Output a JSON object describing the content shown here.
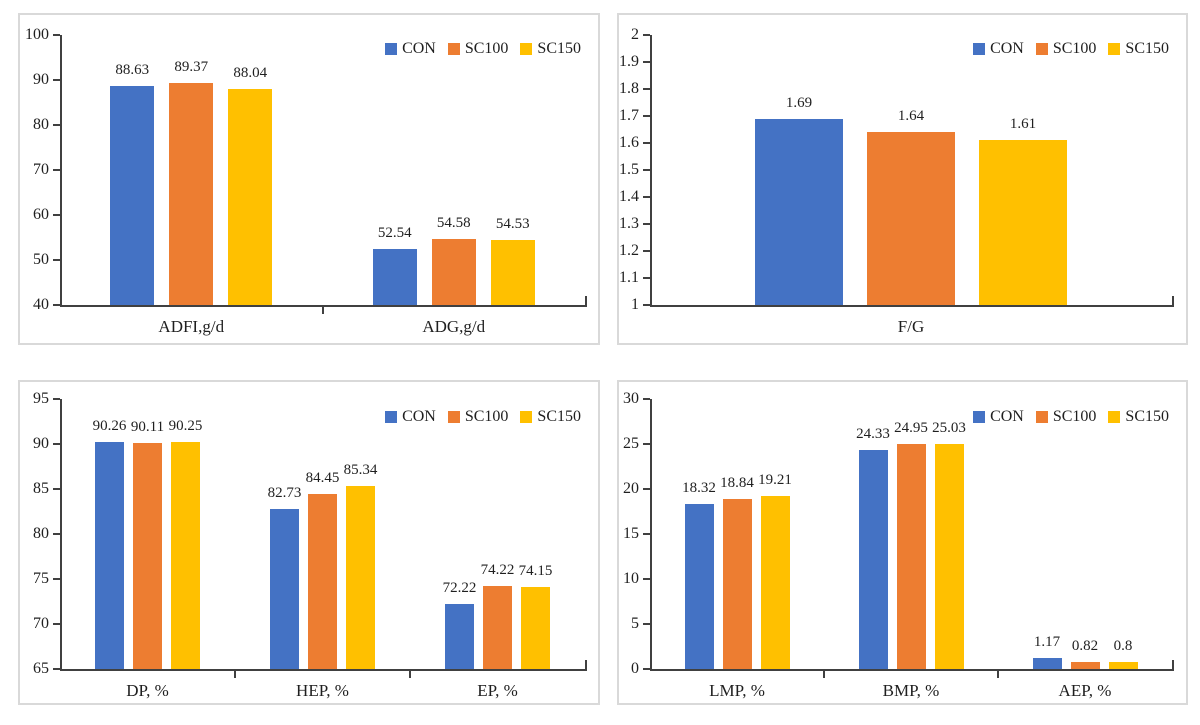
{
  "page": {
    "background": "#ffffff",
    "panel_border_color": "#d9d9d9",
    "axis_color": "#404040",
    "text_color": "#1f1f1f"
  },
  "legend": {
    "position": "top-right",
    "items": [
      {
        "label": "CON",
        "color": "#4472C4"
      },
      {
        "label": "SC100",
        "color": "#ED7D31"
      },
      {
        "label": "SC150",
        "color": "#FFC000"
      }
    ]
  },
  "chart_data": [
    {
      "type": "bar",
      "title": "",
      "categories": [
        "ADFI,g/d",
        "ADG,g/d"
      ],
      "series": [
        {
          "name": "CON",
          "color": "#4472C4",
          "values": [
            88.63,
            52.54
          ],
          "labels": [
            "88.63",
            "52.54"
          ]
        },
        {
          "name": "SC100",
          "color": "#ED7D31",
          "values": [
            89.37,
            54.58
          ],
          "labels": [
            "89.37",
            "54.58"
          ]
        },
        {
          "name": "SC150",
          "color": "#FFC000",
          "values": [
            88.04,
            54.53
          ],
          "labels": [
            "88.04",
            "54.53"
          ]
        }
      ],
      "xlabel": "",
      "ylabel": "",
      "ylim": [
        40,
        100
      ],
      "yticks": [
        "100",
        "90",
        "80",
        "70",
        "60",
        "50",
        "40"
      ],
      "grid": false,
      "legend_position": "top-right",
      "data_labels": true
    },
    {
      "type": "bar",
      "title": "",
      "categories": [
        "F/G"
      ],
      "series": [
        {
          "name": "CON",
          "color": "#4472C4",
          "values": [
            1.69
          ],
          "labels": [
            "1.69"
          ]
        },
        {
          "name": "SC100",
          "color": "#ED7D31",
          "values": [
            1.64
          ],
          "labels": [
            "1.64"
          ]
        },
        {
          "name": "SC150",
          "color": "#FFC000",
          "values": [
            1.61
          ],
          "labels": [
            "1.61"
          ]
        }
      ],
      "xlabel": "",
      "ylabel": "",
      "ylim": [
        1,
        2
      ],
      "yticks": [
        "2",
        "1.9",
        "1.8",
        "1.7",
        "1.6",
        "1.5",
        "1.4",
        "1.3",
        "1.2",
        "1.1",
        "1"
      ],
      "grid": false,
      "legend_position": "top-right",
      "data_labels": true
    },
    {
      "type": "bar",
      "title": "",
      "categories": [
        "DP, %",
        "HEP, %",
        "EP, %"
      ],
      "series": [
        {
          "name": "CON",
          "color": "#4472C4",
          "values": [
            90.26,
            82.73,
            72.22
          ],
          "labels": [
            "90.26",
            "82.73",
            "72.22"
          ]
        },
        {
          "name": "SC100",
          "color": "#ED7D31",
          "values": [
            90.11,
            84.45,
            74.22
          ],
          "labels": [
            "90.11",
            "84.45",
            "74.22"
          ]
        },
        {
          "name": "SC150",
          "color": "#FFC000",
          "values": [
            90.25,
            85.34,
            74.15
          ],
          "labels": [
            "90.25",
            "85.34",
            "74.15"
          ]
        }
      ],
      "xlabel": "",
      "ylabel": "",
      "ylim": [
        65,
        95
      ],
      "yticks": [
        "95",
        "90",
        "85",
        "80",
        "75",
        "70",
        "65"
      ],
      "grid": false,
      "legend_position": "top-right",
      "data_labels": true
    },
    {
      "type": "bar",
      "title": "",
      "categories": [
        "LMP, %",
        "BMP, %",
        "AEP, %"
      ],
      "series": [
        {
          "name": "CON",
          "color": "#4472C4",
          "values": [
            18.32,
            24.33,
            1.17
          ],
          "labels": [
            "18.32",
            "24.33",
            "1.17"
          ]
        },
        {
          "name": "SC100",
          "color": "#ED7D31",
          "values": [
            18.84,
            24.95,
            0.82
          ],
          "labels": [
            "18.84",
            "24.95",
            "0.82"
          ]
        },
        {
          "name": "SC150",
          "color": "#FFC000",
          "values": [
            19.21,
            25.03,
            0.8
          ],
          "labels": [
            "19.21",
            "25.03",
            "0.8"
          ]
        }
      ],
      "xlabel": "",
      "ylabel": "",
      "ylim": [
        0,
        30
      ],
      "yticks": [
        "30",
        "25",
        "20",
        "15",
        "10",
        "5",
        "0"
      ],
      "grid": false,
      "legend_position": "top-right",
      "data_labels": true
    }
  ]
}
